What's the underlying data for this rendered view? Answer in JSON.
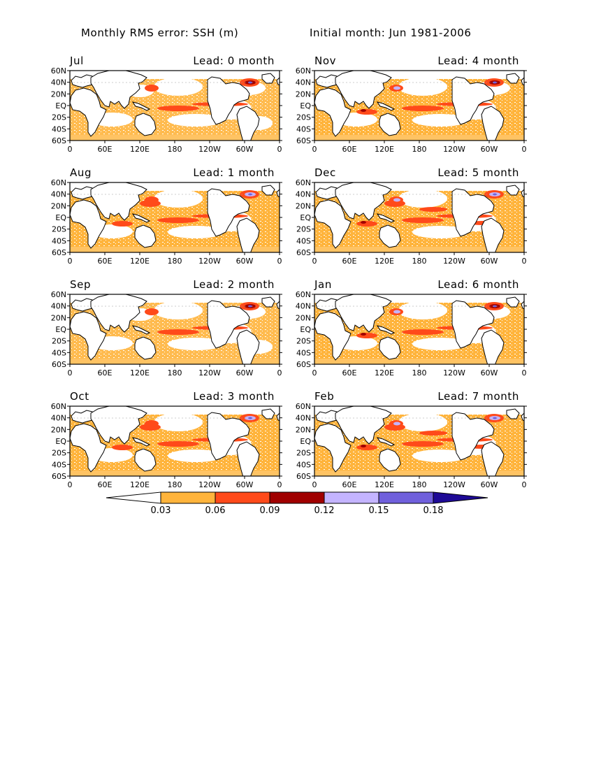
{
  "header": {
    "title_left": "Monthly RMS error: SSH (m)",
    "title_right": "Initial month: Jun 1981-2006"
  },
  "panels": [
    {
      "month": "Jul",
      "lead": "Lead: 0 month"
    },
    {
      "month": "Nov",
      "lead": "Lead: 4 month"
    },
    {
      "month": "Aug",
      "lead": "Lead: 1 month"
    },
    {
      "month": "Dec",
      "lead": "Lead: 5 month"
    },
    {
      "month": "Sep",
      "lead": "Lead: 2 month"
    },
    {
      "month": "Jan",
      "lead": "Lead: 6 month"
    },
    {
      "month": "Oct",
      "lead": "Lead: 3 month"
    },
    {
      "month": "Feb",
      "lead": "Lead: 7 month"
    }
  ],
  "axes": {
    "lat_ticks": [
      "60N",
      "40N",
      "20N",
      "EQ",
      "20S",
      "40S",
      "60S"
    ],
    "lon_ticks": [
      "0",
      "60E",
      "120E",
      "180",
      "120W",
      "60W",
      "0"
    ]
  },
  "colorbar": {
    "levels": [
      "0.03",
      "0.06",
      "0.09",
      "0.12",
      "0.15",
      "0.18"
    ],
    "colors": [
      "#ffffff",
      "#ffb43c",
      "#ff4a1a",
      "#a00000",
      "#c4b4ff",
      "#7060dc",
      "#1e0a96"
    ]
  }
}
